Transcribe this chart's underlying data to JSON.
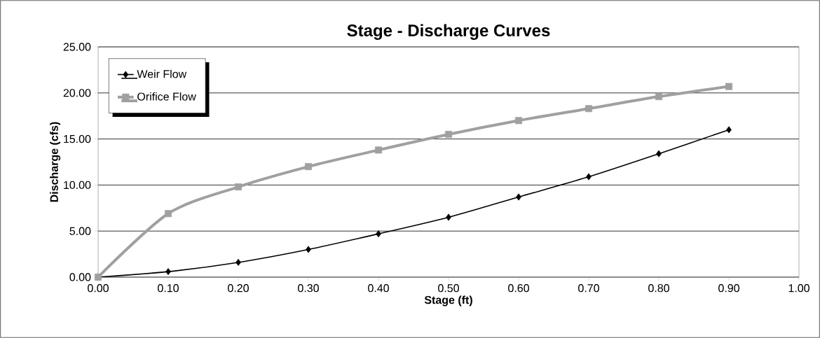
{
  "chart_data": {
    "type": "line",
    "title": "Stage - Discharge Curves",
    "xlabel": "Stage (ft)",
    "ylabel": "Discharge (cfs)",
    "x": [
      0,
      0.1,
      0.2,
      0.3,
      0.4,
      0.5,
      0.6,
      0.7,
      0.8,
      0.9
    ],
    "series": [
      {
        "name": "Weir Flow",
        "color": "#000000",
        "marker": "diamond",
        "values": [
          0,
          0.6,
          1.6,
          3.0,
          4.7,
          6.5,
          8.7,
          10.9,
          13.4,
          16.0
        ]
      },
      {
        "name": "Orifice Flow",
        "color": "#a0a0a0",
        "marker": "square",
        "values": [
          0,
          6.9,
          9.8,
          12.0,
          13.8,
          15.5,
          17.0,
          18.3,
          19.6,
          20.7
        ]
      }
    ],
    "xlim": [
      0,
      1
    ],
    "ylim": [
      0,
      25
    ],
    "xticks": [
      {
        "value": 0,
        "label": "0.00"
      },
      {
        "value": 0.1,
        "label": "0.10"
      },
      {
        "value": 0.2,
        "label": "0.20"
      },
      {
        "value": 0.3,
        "label": "0.30"
      },
      {
        "value": 0.4,
        "label": "0.40"
      },
      {
        "value": 0.5,
        "label": "0.50"
      },
      {
        "value": 0.6,
        "label": "0.60"
      },
      {
        "value": 0.7,
        "label": "0.70"
      },
      {
        "value": 0.8,
        "label": "0.80"
      },
      {
        "value": 0.9,
        "label": "0.90"
      },
      {
        "value": 1,
        "label": "1.00"
      }
    ],
    "yticks": [
      {
        "value": 0,
        "label": "0.00"
      },
      {
        "value": 5,
        "label": "5.00"
      },
      {
        "value": 10,
        "label": "10.00"
      },
      {
        "value": 15,
        "label": "15.00"
      },
      {
        "value": 20,
        "label": "20.00"
      },
      {
        "value": 25,
        "label": "25.00"
      }
    ],
    "grid": "y",
    "legend": "top left"
  }
}
